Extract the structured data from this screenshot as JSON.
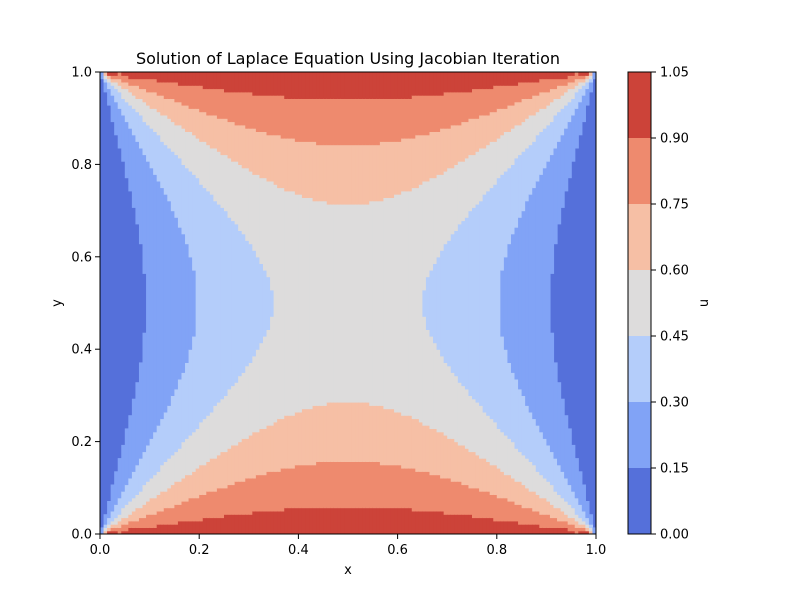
{
  "chart_data": {
    "type": "contourf",
    "title": "Solution of Laplace Equation Using Jacobian Iteration",
    "xlabel": "x",
    "ylabel": "y",
    "colorbar_label": "u",
    "xlim": [
      0.0,
      1.0
    ],
    "ylim": [
      0.0,
      1.0
    ],
    "x_ticks": [
      0.0,
      0.2,
      0.4,
      0.6,
      0.8,
      1.0
    ],
    "x_tick_labels": [
      "0.0",
      "0.2",
      "0.4",
      "0.6",
      "0.8",
      "1.0"
    ],
    "y_ticks": [
      0.0,
      0.2,
      0.4,
      0.6,
      0.8,
      1.0
    ],
    "y_tick_labels": [
      "0.0",
      "0.2",
      "0.4",
      "0.6",
      "0.8",
      "1.0"
    ],
    "levels": [
      0.0,
      0.15,
      0.3,
      0.45,
      0.6,
      0.75,
      0.9,
      1.05
    ],
    "level_labels": [
      "0.00",
      "0.15",
      "0.30",
      "0.45",
      "0.60",
      "0.75",
      "0.90",
      "1.05"
    ],
    "colormap": "coolwarm",
    "colors": [
      "#5570da",
      "#81a3f6",
      "#b4cdfa",
      "#dddcdc",
      "#f6bfa5",
      "#ee8a6e",
      "#cc4339"
    ],
    "grid": false
  }
}
